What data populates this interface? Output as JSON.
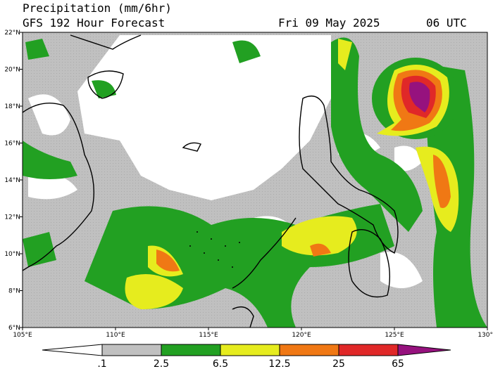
{
  "header": {
    "title": "Precipitation (mm/6hr)",
    "subtitle": "GFS 192 Hour Forecast",
    "date": "Fri 09 May 2025",
    "time": "06 UTC"
  },
  "map": {
    "lon_ticks": [
      {
        "value": 105,
        "label": "105°E"
      },
      {
        "value": 110,
        "label": "110°E"
      },
      {
        "value": 115,
        "label": "115°E"
      },
      {
        "value": 120,
        "label": "120°E"
      },
      {
        "value": 125,
        "label": "125°E"
      },
      {
        "value": 130,
        "label": "130°E"
      }
    ],
    "lat_ticks": [
      {
        "value": 6,
        "label": "6°N"
      },
      {
        "value": 8,
        "label": "8°N"
      },
      {
        "value": 10,
        "label": "10°N"
      },
      {
        "value": 12,
        "label": "12°N"
      },
      {
        "value": 14,
        "label": "14°N"
      },
      {
        "value": 16,
        "label": "16°N"
      },
      {
        "value": 18,
        "label": "18°N"
      },
      {
        "value": 20,
        "label": "20°N"
      },
      {
        "value": 22,
        "label": "22°N"
      }
    ],
    "lonlim": [
      105,
      130
    ],
    "latlim": [
      6,
      22
    ]
  },
  "colorbar": {
    "levels": [
      {
        "value": 0.1,
        "label": ".1"
      },
      2.5,
      6.5,
      12.5,
      25,
      65
    ],
    "colors": [
      "#ffffff",
      "#c0c0c0",
      "#22a022",
      "#e6ec1e",
      "#f07814",
      "#e02828",
      "#96127e"
    ]
  }
}
